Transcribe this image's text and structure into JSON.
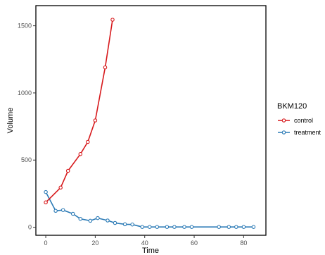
{
  "chart_data": {
    "type": "line",
    "xlabel": "Time",
    "ylabel": "Volume",
    "xlim": [
      -4,
      89
    ],
    "ylim": [
      -60,
      1650
    ],
    "x_ticks": [
      0,
      20,
      40,
      60,
      80
    ],
    "y_ticks": [
      0,
      500,
      1000,
      1500
    ],
    "grid": false,
    "legend": {
      "title": "BKM120",
      "position": "right"
    },
    "series": [
      {
        "name": "control",
        "color": "#d7191c",
        "points": [
          {
            "x": 0,
            "y": 185
          },
          {
            "x": 6,
            "y": 295
          },
          {
            "x": 9,
            "y": 420
          },
          {
            "x": 14,
            "y": 545
          },
          {
            "x": 17,
            "y": 635
          },
          {
            "x": 20,
            "y": 795
          },
          {
            "x": 24,
            "y": 1190
          },
          {
            "x": 27,
            "y": 1545
          }
        ]
      },
      {
        "name": "treatment",
        "color": "#2c7bb6",
        "points": [
          {
            "x": 0,
            "y": 262
          },
          {
            "x": 4,
            "y": 122
          },
          {
            "x": 7,
            "y": 128
          },
          {
            "x": 11,
            "y": 100
          },
          {
            "x": 14,
            "y": 62
          },
          {
            "x": 18,
            "y": 48
          },
          {
            "x": 21,
            "y": 68
          },
          {
            "x": 25,
            "y": 50
          },
          {
            "x": 28,
            "y": 32
          },
          {
            "x": 32,
            "y": 22
          },
          {
            "x": 35,
            "y": 20
          },
          {
            "x": 39,
            "y": 2
          },
          {
            "x": 42,
            "y": 2
          },
          {
            "x": 45,
            "y": 2
          },
          {
            "x": 49,
            "y": 2
          },
          {
            "x": 52,
            "y": 2
          },
          {
            "x": 56,
            "y": 2
          },
          {
            "x": 59,
            "y": 2
          },
          {
            "x": 70,
            "y": 2
          },
          {
            "x": 74,
            "y": 2
          },
          {
            "x": 77,
            "y": 2
          },
          {
            "x": 80,
            "y": 2
          },
          {
            "x": 84,
            "y": 2
          }
        ]
      }
    ]
  }
}
